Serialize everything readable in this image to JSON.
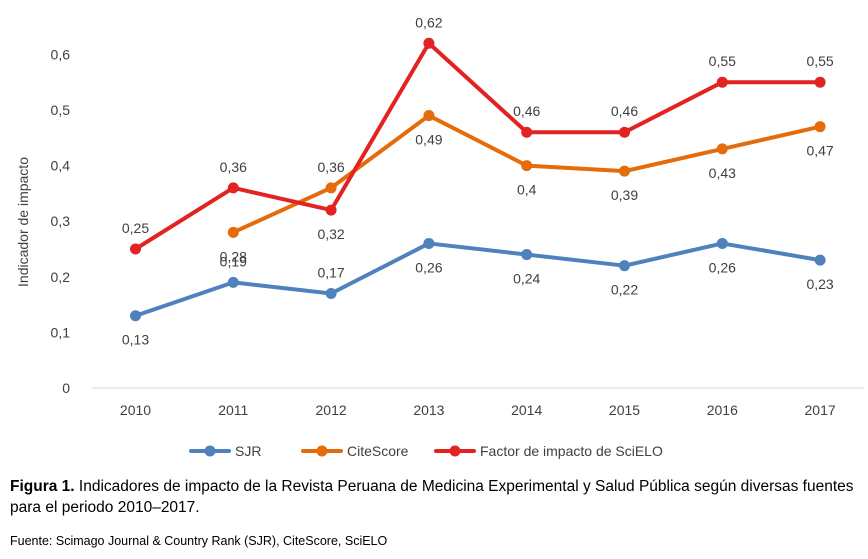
{
  "chart_data": {
    "type": "line",
    "title": "",
    "xlabel": "",
    "ylabel": "Indicador de impacto",
    "ylim": [
      0,
      0.6
    ],
    "yticks": [
      "0",
      "0,1",
      "0,2",
      "0,3",
      "0,4",
      "0,5",
      "0,6"
    ],
    "categories": [
      "2010",
      "2011",
      "2012",
      "2013",
      "2014",
      "2015",
      "2016",
      "2017"
    ],
    "grid": false,
    "legend_position": "bottom",
    "series": [
      {
        "name": "SJR",
        "color": "#4f81bd",
        "values": [
          0.13,
          0.19,
          0.17,
          0.26,
          0.24,
          0.22,
          0.26,
          0.23
        ],
        "labels": [
          "0,13",
          "0,19",
          "0,17",
          "0,26",
          "0,24",
          "0,22",
          "0,26",
          "0,23"
        ]
      },
      {
        "name": "CiteScore",
        "color": "#e46c0a",
        "values": [
          null,
          0.28,
          0.36,
          0.49,
          0.4,
          0.39,
          0.43,
          0.47
        ],
        "labels": [
          null,
          "0,28",
          "0,36",
          "0,49",
          "0,4",
          "0,39",
          "0,43",
          "0,47"
        ]
      },
      {
        "name": "Factor de impacto de SciELO",
        "color": "#e32222",
        "values": [
          0.25,
          0.36,
          0.32,
          0.62,
          0.46,
          0.46,
          0.55,
          0.55
        ],
        "labels": [
          "0,25",
          "0,36",
          "0,32",
          "0,62",
          "0,46",
          "0,46",
          "0,55",
          "0,55"
        ]
      }
    ]
  },
  "caption": {
    "label": "Figura 1.",
    "text": " Indicadores de impacto de la Revista Peruana de Medicina Experimental y Salud Pública según diversas fuentes para el periodo 2010–2017."
  },
  "source": "Fuente: Scimago Journal & Country Rank (SJR), CiteScore, SciELO"
}
